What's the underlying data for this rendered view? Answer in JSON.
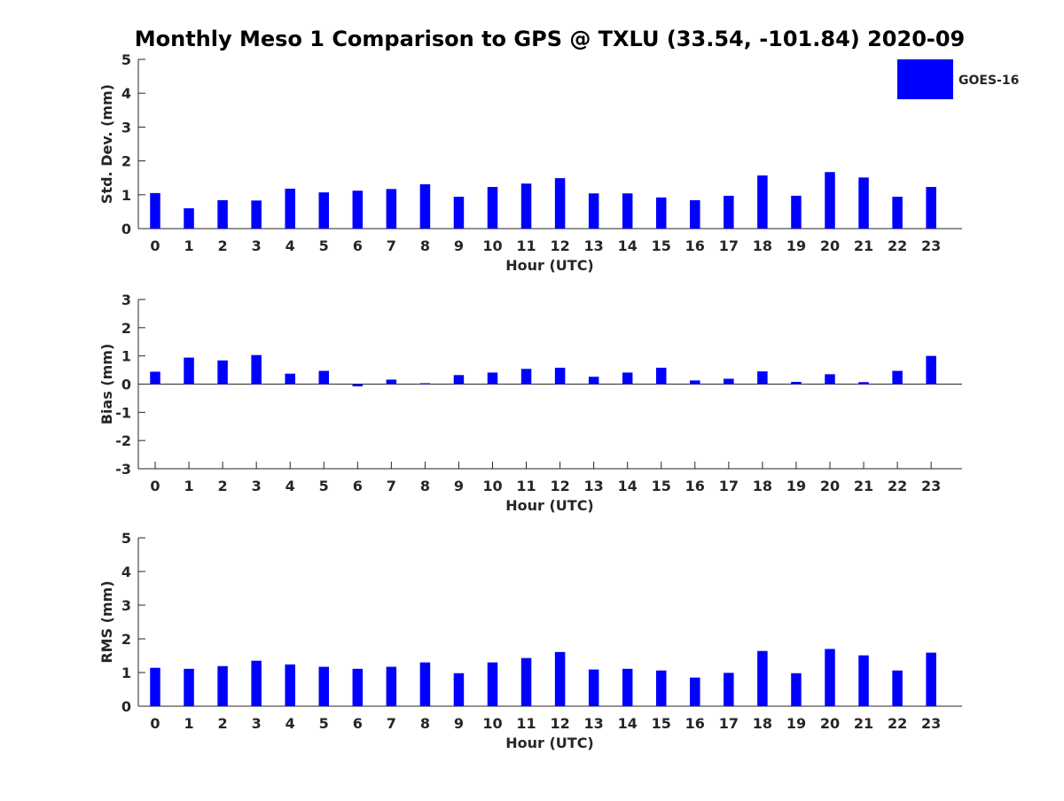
{
  "title": "Monthly Meso 1 Comparison to GPS @ TXLU (33.54, -101.84) 2020-09",
  "legend": {
    "label": "GOES-16",
    "color": "#0000ff"
  },
  "chart_data": [
    {
      "type": "bar",
      "ylabel": "Std. Dev. (mm)",
      "xlabel": "Hour (UTC)",
      "ylim": [
        0,
        5
      ],
      "yticks": [
        0,
        1,
        2,
        3,
        4,
        5
      ],
      "categories": [
        "0",
        "1",
        "2",
        "3",
        "4",
        "5",
        "6",
        "7",
        "8",
        "9",
        "10",
        "11",
        "12",
        "13",
        "14",
        "15",
        "16",
        "17",
        "18",
        "19",
        "20",
        "21",
        "22",
        "23"
      ],
      "series": [
        {
          "name": "GOES-16",
          "color": "#0000ff",
          "values": [
            1.05,
            0.6,
            0.84,
            0.83,
            1.18,
            1.07,
            1.12,
            1.17,
            1.31,
            0.94,
            1.23,
            1.33,
            1.49,
            1.04,
            1.04,
            0.92,
            0.84,
            0.97,
            1.57,
            0.97,
            1.67,
            1.51,
            0.94,
            1.23
          ]
        }
      ]
    },
    {
      "type": "bar",
      "ylabel": "Bias (mm)",
      "xlabel": "Hour (UTC)",
      "ylim": [
        -3,
        3
      ],
      "yticks": [
        -3,
        -2,
        -1,
        0,
        1,
        2,
        3
      ],
      "categories": [
        "0",
        "1",
        "2",
        "3",
        "4",
        "5",
        "6",
        "7",
        "8",
        "9",
        "10",
        "11",
        "12",
        "13",
        "14",
        "15",
        "16",
        "17",
        "18",
        "19",
        "20",
        "21",
        "22",
        "23"
      ],
      "series": [
        {
          "name": "GOES-16",
          "color": "#0000ff",
          "values": [
            0.44,
            0.94,
            0.84,
            1.03,
            0.37,
            0.47,
            -0.08,
            0.16,
            0.03,
            0.32,
            0.41,
            0.54,
            0.58,
            0.26,
            0.41,
            0.58,
            0.13,
            0.19,
            0.45,
            0.08,
            0.35,
            0.07,
            0.47,
            1.0
          ]
        }
      ]
    },
    {
      "type": "bar",
      "ylabel": "RMS (mm)",
      "xlabel": "Hour (UTC)",
      "ylim": [
        0,
        5
      ],
      "yticks": [
        0,
        1,
        2,
        3,
        4,
        5
      ],
      "categories": [
        "0",
        "1",
        "2",
        "3",
        "4",
        "5",
        "6",
        "7",
        "8",
        "9",
        "10",
        "11",
        "12",
        "13",
        "14",
        "15",
        "16",
        "17",
        "18",
        "19",
        "20",
        "21",
        "22",
        "23"
      ],
      "series": [
        {
          "name": "GOES-16",
          "color": "#0000ff",
          "values": [
            1.14,
            1.11,
            1.19,
            1.35,
            1.24,
            1.17,
            1.11,
            1.17,
            1.3,
            0.98,
            1.3,
            1.43,
            1.61,
            1.09,
            1.11,
            1.06,
            0.85,
            0.99,
            1.64,
            0.98,
            1.7,
            1.51,
            1.06,
            1.59
          ]
        }
      ]
    }
  ]
}
